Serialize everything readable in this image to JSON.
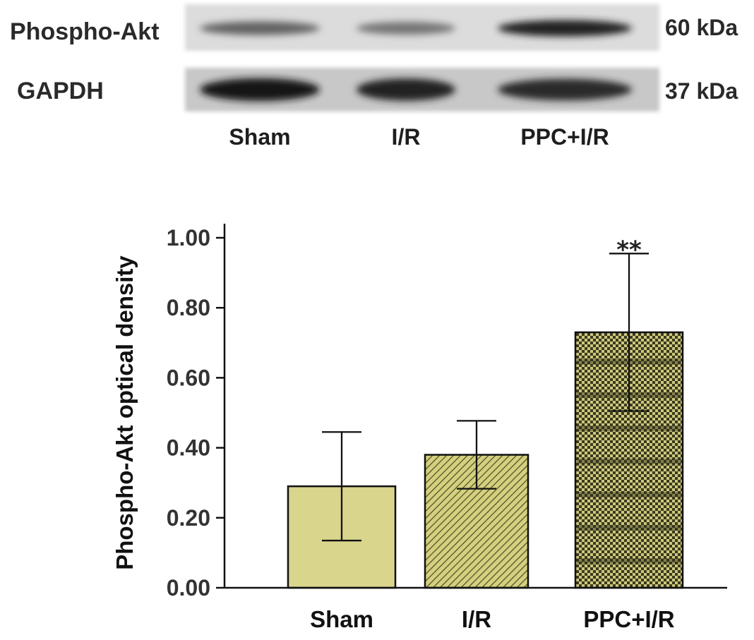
{
  "blot": {
    "rows": [
      {
        "label": "Phospho-Akt",
        "size": "60 kDa",
        "intensities": [
          0.55,
          0.45,
          0.9
        ]
      },
      {
        "label": "GAPDH",
        "size": "37 kDa",
        "intensities": [
          0.95,
          0.9,
          0.85
        ]
      }
    ],
    "lanes": [
      "Sham",
      "I/R",
      "PPC+I/R"
    ]
  },
  "chart_data": {
    "type": "bar",
    "categories": [
      "Sham",
      "I/R",
      "PPC+I/R"
    ],
    "values": [
      0.29,
      0.38,
      0.73
    ],
    "errors": [
      0.155,
      0.097,
      0.225
    ],
    "annotations": [
      "",
      "",
      "**"
    ],
    "ylabel": "Phospho-Akt optical density",
    "ylim": [
      0,
      1.0
    ],
    "yticks": [
      "0.00",
      "0.20",
      "0.40",
      "0.60",
      "0.80",
      "1.00"
    ],
    "ytick_values": [
      0,
      0.2,
      0.4,
      0.6,
      0.8,
      1.0
    ],
    "grid": false,
    "colors": {
      "sham_fill": "#d9d58c",
      "ir_fill": "#cfcb78",
      "ppc_fill": "#c9c37a",
      "pattern_dark": "#3a3a1e",
      "outline": "#111111"
    }
  }
}
